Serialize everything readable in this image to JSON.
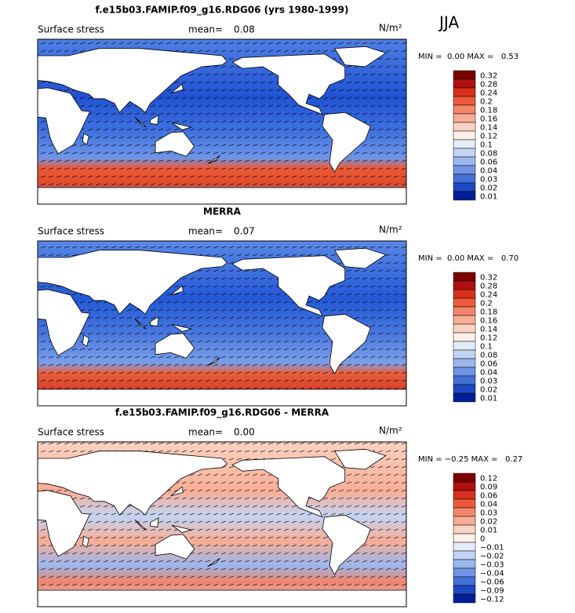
{
  "season": "JJA",
  "panels": [
    {
      "title": "f.e15b03.FAMIP.f09_g16.RDG06 (yrs 1980-1999)",
      "field": "Surface stress",
      "mean_label": "mean=",
      "mean": "0.08",
      "units": "N/m²",
      "range": "MIN =  0.00 MAX =   0.53",
      "colorbar": {
        "levels": [
          "0.32",
          "0.28",
          "0.24",
          "0.2",
          "0.18",
          "0.16",
          "0.14",
          "0.12",
          "0.1",
          "0.08",
          "0.06",
          "0.04",
          "0.03",
          "0.02",
          "0.01"
        ],
        "colors": [
          "#7a0000",
          "#b01010",
          "#d8301c",
          "#ec5a3a",
          "#f4866a",
          "#f8ad95",
          "#fcd3c2",
          "#fdf0e8",
          "#e4ecfa",
          "#c2d4f4",
          "#9ab7ee",
          "#6f94e4",
          "#4570da",
          "#1e48c4",
          "#001e96"
        ]
      }
    },
    {
      "title": "MERRA",
      "field": "Surface stress",
      "mean_label": "mean=",
      "mean": "0.07",
      "units": "N/m²",
      "range": "MIN =  0.00 MAX =   0.70",
      "colorbar": {
        "levels": [
          "0.32",
          "0.28",
          "0.24",
          "0.2",
          "0.18",
          "0.16",
          "0.14",
          "0.12",
          "0.1",
          "0.08",
          "0.06",
          "0.04",
          "0.03",
          "0.02",
          "0.01"
        ],
        "colors": [
          "#7a0000",
          "#b01010",
          "#d8301c",
          "#ec5a3a",
          "#f4866a",
          "#f8ad95",
          "#fcd3c2",
          "#fdf0e8",
          "#e4ecfa",
          "#c2d4f4",
          "#9ab7ee",
          "#6f94e4",
          "#4570da",
          "#1e48c4",
          "#001e96"
        ]
      }
    },
    {
      "title": "f.e15b03.FAMIP.f09_g16.RDG06 - MERRA",
      "field": "Surface stress",
      "mean_label": "mean=",
      "mean": "0.00",
      "units": "N/m²",
      "range": "MIN = −0.25 MAX =   0.27",
      "colorbar": {
        "levels": [
          "0.12",
          "0.09",
          "0.06",
          "0.04",
          "0.03",
          "0.02",
          "0.01",
          "0",
          "−0.01",
          "−0.02",
          "−0.03",
          "−0.04",
          "−0.06",
          "−0.09",
          "−0.12"
        ],
        "colors": [
          "#7a0000",
          "#b01010",
          "#d8301c",
          "#ec5a3a",
          "#f4866a",
          "#f8ad95",
          "#fcd3c2",
          "#fdf0e8",
          "#e4ecfa",
          "#c2d4f4",
          "#9ab7ee",
          "#6f94e4",
          "#4570da",
          "#1e48c4",
          "#001e96"
        ]
      }
    }
  ]
}
